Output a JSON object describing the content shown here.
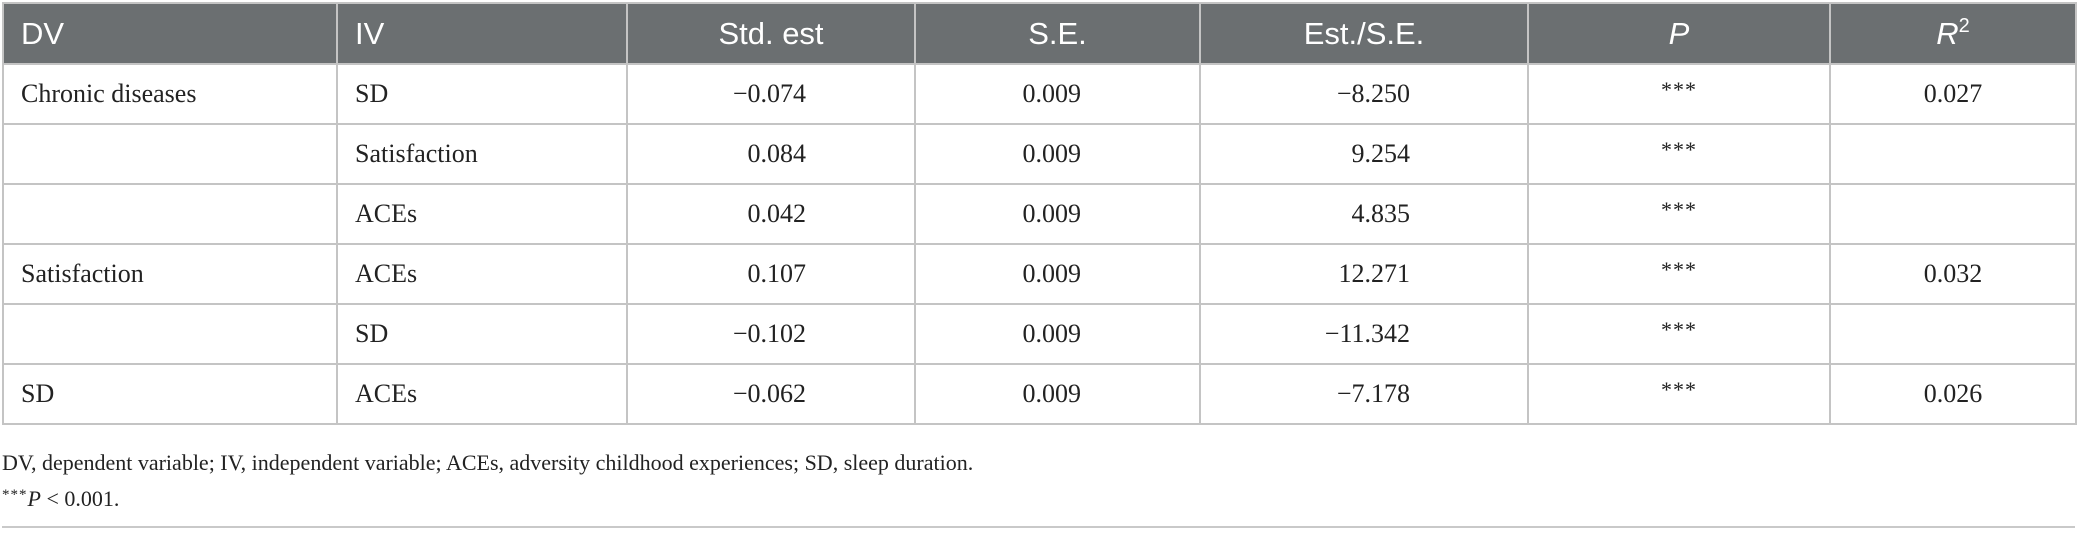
{
  "table": {
    "headers": {
      "dv": "DV",
      "iv": "IV",
      "std_est": "Std. est",
      "se": "S.E.",
      "est_se": "Est./S.E.",
      "p": "P",
      "r2_base": "R",
      "r2_sup": "2"
    },
    "rows": [
      {
        "dv": "Chronic diseases",
        "iv": "SD",
        "std_est": "−0.074",
        "se": "0.009",
        "est_se": "−8.250",
        "p": "***",
        "r2": "0.027"
      },
      {
        "dv": "",
        "iv": "Satisfaction",
        "std_est": "0.084",
        "se": "0.009",
        "est_se": "9.254",
        "p": "***",
        "r2": ""
      },
      {
        "dv": "",
        "iv": "ACEs",
        "std_est": "0.042",
        "se": "0.009",
        "est_se": "4.835",
        "p": "***",
        "r2": ""
      },
      {
        "dv": "Satisfaction",
        "iv": "ACEs",
        "std_est": "0.107",
        "se": "0.009",
        "est_se": "12.271",
        "p": "***",
        "r2": "0.032"
      },
      {
        "dv": "",
        "iv": "SD",
        "std_est": "−0.102",
        "se": "0.009",
        "est_se": "−11.342",
        "p": "***",
        "r2": ""
      },
      {
        "dv": "SD",
        "iv": "ACEs",
        "std_est": "−0.062",
        "se": "0.009",
        "est_se": "−7.178",
        "p": "***",
        "r2": "0.026"
      }
    ]
  },
  "footnotes": {
    "abbreviations": "DV, dependent variable; IV, independent variable; ACEs, adversity childhood experiences; SD, sleep duration.",
    "sig_stars": "***",
    "sig_p": "P",
    "sig_rest": " < 0.001."
  },
  "colors": {
    "header_bg": "#6b6f71",
    "header_text": "#ffffff",
    "grid": "#c4c4c4",
    "body_text": "#222222"
  }
}
